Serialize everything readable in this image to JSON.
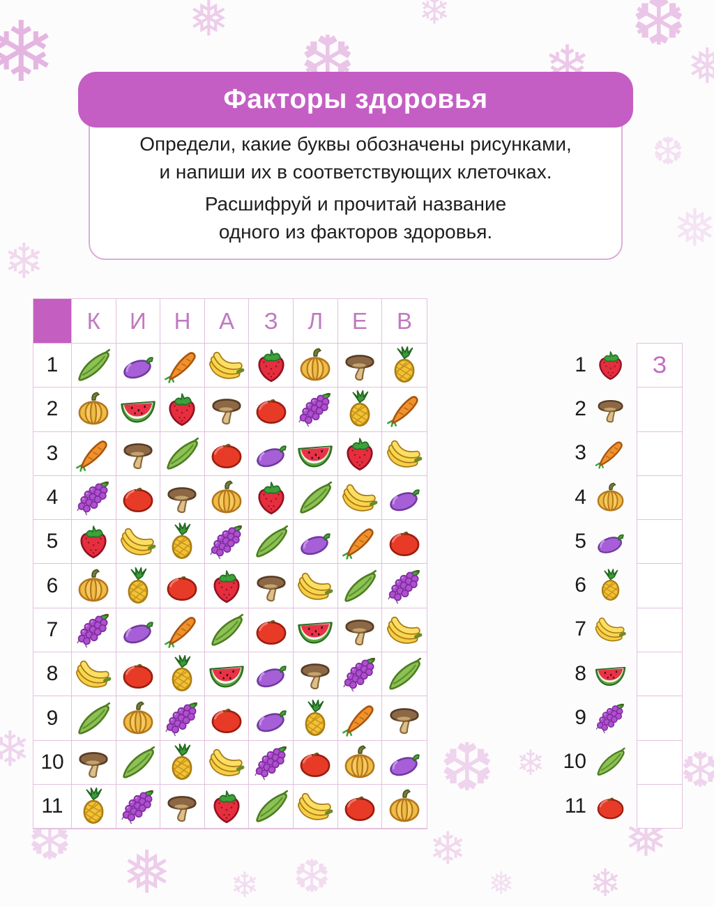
{
  "title": "Факторы здоровья",
  "instructions": {
    "line1": "Определи, какие буквы обозначены рисунками,",
    "line2": "и напиши их в соответствующих клеточках.",
    "line3": "Расшифруй и прочитай название",
    "line4": "одного из факторов здоровья."
  },
  "grid": {
    "column_letters": [
      "К",
      "И",
      "Н",
      "А",
      "З",
      "Л",
      "Е",
      "В"
    ],
    "row_numbers": [
      "1",
      "2",
      "3",
      "4",
      "5",
      "6",
      "7",
      "8",
      "9",
      "10",
      "11"
    ],
    "cells": [
      [
        "pea",
        "eggplant",
        "carrot",
        "banana",
        "strawberry",
        "pumpkin",
        "mushroom",
        "pineapple"
      ],
      [
        "pumpkin",
        "watermelon",
        "strawberry",
        "mushroom",
        "tomato",
        "grapes",
        "pineapple",
        "carrot"
      ],
      [
        "carrot",
        "mushroom",
        "pea",
        "tomato",
        "eggplant",
        "watermelon",
        "strawberry",
        "banana"
      ],
      [
        "grapes",
        "tomato",
        "mushroom",
        "pumpkin",
        "strawberry",
        "pea",
        "banana",
        "eggplant"
      ],
      [
        "strawberry",
        "banana",
        "pineapple",
        "grapes",
        "pea",
        "eggplant",
        "carrot",
        "tomato"
      ],
      [
        "pumpkin",
        "pineapple",
        "tomato",
        "strawberry",
        "mushroom",
        "banana",
        "pea",
        "grapes"
      ],
      [
        "grapes",
        "eggplant",
        "carrot",
        "pea",
        "tomato",
        "watermelon",
        "mushroom",
        "banana"
      ],
      [
        "banana",
        "tomato",
        "pineapple",
        "watermelon",
        "eggplant",
        "mushroom",
        "grapes",
        "pea"
      ],
      [
        "pea",
        "pumpkin",
        "grapes",
        "tomato",
        "eggplant",
        "pineapple",
        "carrot",
        "mushroom"
      ],
      [
        "mushroom",
        "pea",
        "pineapple",
        "banana",
        "grapes",
        "tomato",
        "pumpkin",
        "eggplant"
      ],
      [
        "pineapple",
        "grapes",
        "mushroom",
        "strawberry",
        "pea",
        "banana",
        "tomato",
        "pumpkin"
      ]
    ]
  },
  "answers": {
    "rows": [
      {
        "number": "1",
        "icon": "strawberry",
        "value": "З"
      },
      {
        "number": "2",
        "icon": "mushroom",
        "value": ""
      },
      {
        "number": "3",
        "icon": "carrot",
        "value": ""
      },
      {
        "number": "4",
        "icon": "pumpkin",
        "value": ""
      },
      {
        "number": "5",
        "icon": "eggplant",
        "value": ""
      },
      {
        "number": "6",
        "icon": "pineapple",
        "value": ""
      },
      {
        "number": "7",
        "icon": "banana",
        "value": ""
      },
      {
        "number": "8",
        "icon": "watermelon",
        "value": ""
      },
      {
        "number": "9",
        "icon": "grapes",
        "value": ""
      },
      {
        "number": "10",
        "icon": "pea",
        "value": ""
      },
      {
        "number": "11",
        "icon": "tomato",
        "value": ""
      }
    ]
  },
  "icon_names": {
    "pea": "pea-pod-icon",
    "eggplant": "eggplant-icon",
    "carrot": "carrot-icon",
    "banana": "bananas-icon",
    "strawberry": "strawberry-icon",
    "pumpkin": "pumpkin-icon",
    "mushroom": "mushroom-icon",
    "pineapple": "pineapple-icon",
    "watermelon": "watermelon-icon",
    "tomato": "tomato-icon",
    "grapes": "grapes-icon"
  },
  "decor": {
    "snowflake_glyphs": [
      "❄",
      "❅",
      "❆",
      "✻"
    ]
  },
  "colors": {
    "banner": "#c45ec4",
    "corner": "#c45ec0",
    "hletter": "#bf7ac0",
    "gridline": "#e2c0de",
    "aletter": "#c26cc2",
    "snowflake": "#e3aede"
  }
}
